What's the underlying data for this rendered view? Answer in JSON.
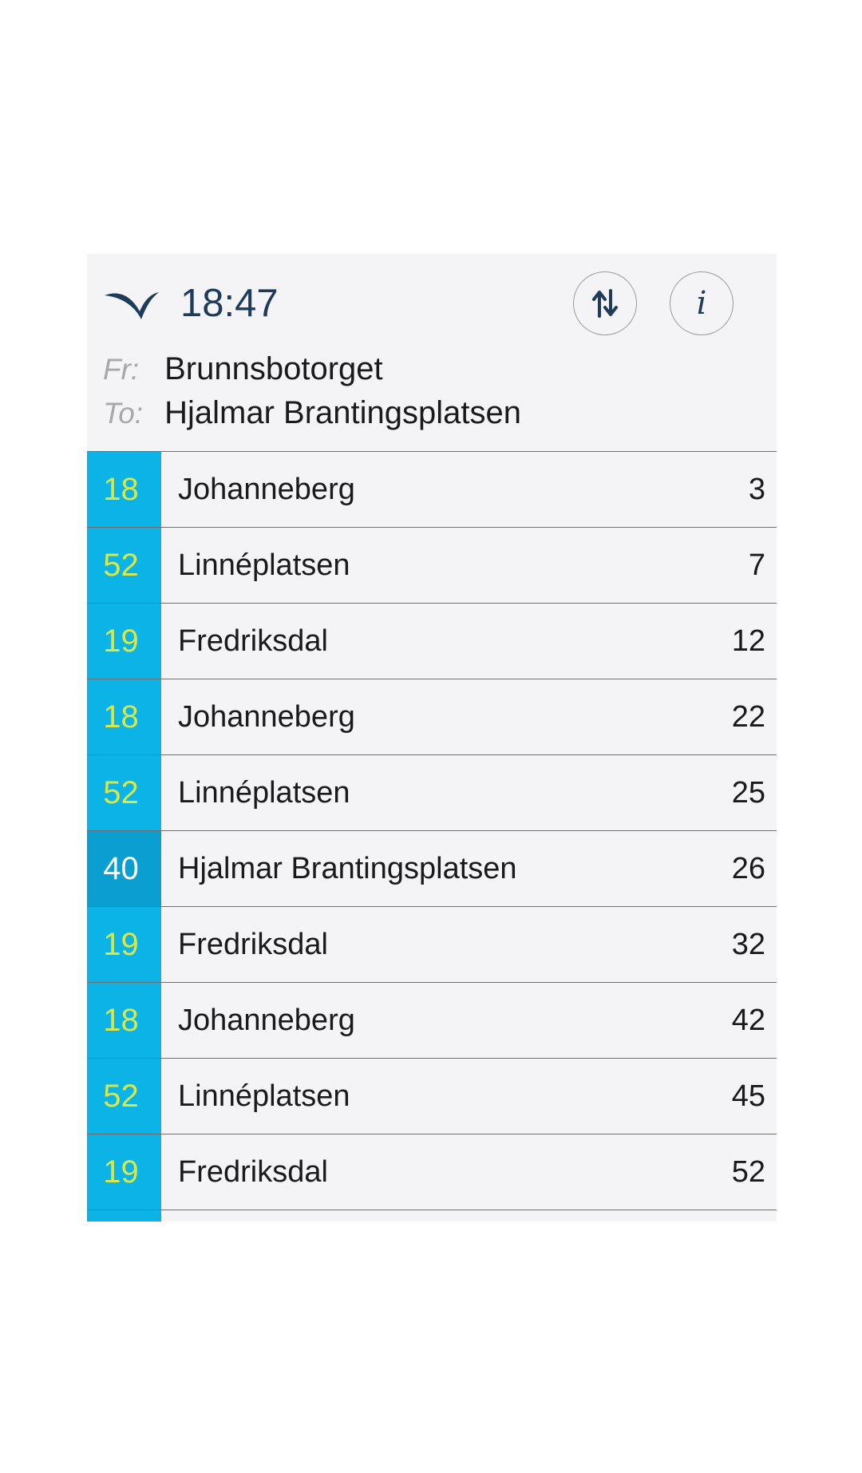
{
  "header": {
    "time": "18:47",
    "from_prefix": "Fr:",
    "from_stop": "Brunnsbotorget",
    "to_prefix": "To:",
    "to_stop": "Hjalmar Brantingsplatsen",
    "logo_icon": "bird-logo-icon",
    "swap_icon": "swap-arrows-icon",
    "info_icon": "info-icon",
    "info_glyph": "i"
  },
  "colors": {
    "line_bg": "#0bb3e6",
    "line_bg_highlight": "#0a9fd0",
    "line_text": "#d6e84a",
    "line_text_highlight": "#ffffff",
    "accent": "#1f3b5c"
  },
  "departures": [
    {
      "line": "18",
      "destination": "Johanneberg",
      "minutes": "3"
    },
    {
      "line": "52",
      "destination": "Linnéplatsen",
      "minutes": "7"
    },
    {
      "line": "19",
      "destination": "Fredriksdal",
      "minutes": "12"
    },
    {
      "line": "18",
      "destination": "Johanneberg",
      "minutes": "22"
    },
    {
      "line": "52",
      "destination": "Linnéplatsen",
      "minutes": "25"
    },
    {
      "line": "40",
      "destination": "Hjalmar Brantingsplatsen",
      "minutes": "26",
      "highlight": true
    },
    {
      "line": "19",
      "destination": "Fredriksdal",
      "minutes": "32"
    },
    {
      "line": "18",
      "destination": "Johanneberg",
      "minutes": "42"
    },
    {
      "line": "52",
      "destination": "Linnéplatsen",
      "minutes": "45"
    },
    {
      "line": "19",
      "destination": "Fredriksdal",
      "minutes": "52"
    }
  ]
}
